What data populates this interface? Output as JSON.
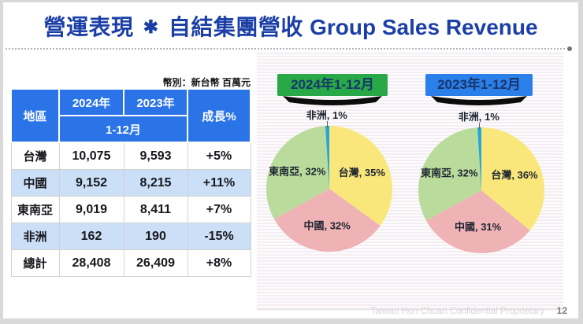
{
  "slide": {
    "title": {
      "zh_left": "營運表現",
      "star": "✱",
      "zh_right": "自結集團營收",
      "en": "Group Sales Revenue"
    },
    "currency_note": "幣別：新台幣 百萬元",
    "footer": {
      "confidential": "Taiwan Hon Chuan Confidential Proprietary",
      "page": "12"
    }
  },
  "table": {
    "header": {
      "region": "地區",
      "col_2024": "2024年",
      "col_2023": "2023年",
      "period": "1-12月",
      "growth": "成長%"
    },
    "rows": [
      {
        "region": "台灣",
        "y2024": "10,075",
        "y2023": "9,593",
        "growth": "+5%"
      },
      {
        "region": "中國",
        "y2024": "9,152",
        "y2023": "8,215",
        "growth": "+11%"
      },
      {
        "region": "東南亞",
        "y2024": "9,019",
        "y2023": "8,411",
        "growth": "+7%"
      },
      {
        "region": "非洲",
        "y2024": "162",
        "y2023": "190",
        "growth": "-15%"
      },
      {
        "region": "總計",
        "y2024": "28,408",
        "y2023": "26,409",
        "growth": "+8%"
      }
    ]
  },
  "chart_data": [
    {
      "type": "pie",
      "title": "2024年1-12月",
      "title_bg": "#29a847",
      "labels": [
        "台灣",
        "中國",
        "東南亞",
        "非洲"
      ],
      "values": [
        35,
        32,
        32,
        1
      ],
      "colors": [
        "#fae77b",
        "#efb2b5",
        "#b9dc9c",
        "#23a7da"
      ],
      "start_angle_deg": 0,
      "direction": "clockwise",
      "label_format": "{label}, {value}%",
      "legend": "none"
    },
    {
      "type": "pie",
      "title": "2023年1-12月",
      "title_bg": "#2b7fe8",
      "labels": [
        "台灣",
        "中國",
        "東南亞",
        "非洲"
      ],
      "values": [
        36,
        31,
        32,
        1
      ],
      "colors": [
        "#fae77b",
        "#efb2b5",
        "#b9dc9c",
        "#23a7da"
      ],
      "start_angle_deg": 0,
      "direction": "clockwise",
      "label_format": "{label}, {value}%",
      "legend": "none"
    }
  ],
  "colors": {
    "title_text": "#1b3fa7",
    "table_header_bg": "#2b74e8",
    "table_alt_row_bg": "#cbdff6",
    "badge_text": "#17366b",
    "frame": "#d9d9d9"
  }
}
